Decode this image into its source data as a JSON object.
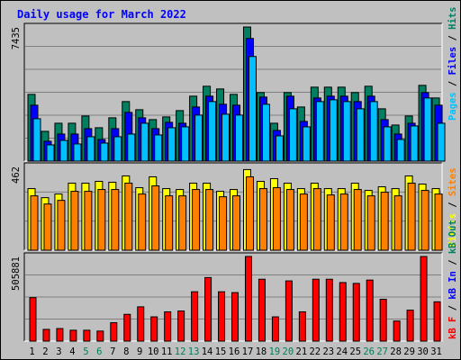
{
  "colors": {
    "background": "#c0c0c0",
    "panel": "#c0c0c0",
    "grid": "#808080",
    "title": "#0000ff",
    "hits": "#008060",
    "files": "#0000ff",
    "pages": "#00c0ff",
    "visits": "#ffff00",
    "sites": "#ff8000",
    "kbin": "#ff0000",
    "weekend": "#00805c",
    "weekday": "#000000"
  },
  "chart_data": [
    {
      "type": "bar",
      "title": "Daily usage for March 2022",
      "categories": [
        "1",
        "2",
        "3",
        "4",
        "5",
        "6",
        "7",
        "8",
        "9",
        "10",
        "11",
        "12",
        "13",
        "14",
        "15",
        "16",
        "17",
        "18",
        "19",
        "20",
        "21",
        "22",
        "23",
        "24",
        "25",
        "26",
        "27",
        "28",
        "29",
        "30",
        "31"
      ],
      "weekend_days": [
        "5",
        "6",
        "12",
        "13",
        "19",
        "20",
        "26",
        "27"
      ],
      "ymax_label": "7435",
      "ylim": [
        0,
        7435
      ],
      "series": [
        {
          "name": "Hits",
          "color_key": "hits",
          "values": [
            3700,
            1650,
            2100,
            2100,
            2500,
            1850,
            2400,
            3300,
            2850,
            2300,
            2450,
            2800,
            3600,
            4150,
            4000,
            3700,
            7435,
            3800,
            2100,
            3800,
            3000,
            4100,
            4100,
            4100,
            3800,
            4150,
            2900,
            2000,
            2500,
            4200,
            3500
          ]
        },
        {
          "name": "Files",
          "color_key": "files",
          "values": [
            3100,
            1100,
            1500,
            1500,
            1800,
            1200,
            1800,
            2700,
            2400,
            1800,
            2150,
            2100,
            3000,
            3600,
            3150,
            3100,
            6800,
            3550,
            1700,
            3600,
            2200,
            3500,
            3600,
            3600,
            3300,
            3600,
            2300,
            1500,
            2100,
            3800,
            3100
          ]
        },
        {
          "name": "Pages",
          "color_key": "pages",
          "values": [
            2350,
            900,
            1150,
            950,
            1350,
            1000,
            1350,
            1500,
            2100,
            1450,
            1850,
            1900,
            2550,
            3300,
            2600,
            2550,
            5800,
            3150,
            1400,
            2900,
            1900,
            3300,
            3400,
            3300,
            2900,
            3300,
            1900,
            1200,
            1950,
            3500,
            2100
          ]
        }
      ]
    },
    {
      "type": "bar",
      "categories": [
        "1",
        "2",
        "3",
        "4",
        "5",
        "6",
        "7",
        "8",
        "9",
        "10",
        "11",
        "12",
        "13",
        "14",
        "15",
        "16",
        "17",
        "18",
        "19",
        "20",
        "21",
        "22",
        "23",
        "24",
        "25",
        "26",
        "27",
        "28",
        "29",
        "30",
        "31"
      ],
      "ymax_label": "462",
      "ylim": [
        0,
        462
      ],
      "series": [
        {
          "name": "Visits",
          "color_key": "visits",
          "values": [
            340,
            290,
            310,
            370,
            370,
            380,
            375,
            410,
            345,
            405,
            340,
            335,
            370,
            370,
            325,
            335,
            445,
            380,
            395,
            370,
            340,
            370,
            340,
            340,
            370,
            330,
            350,
            340,
            410,
            365,
            340
          ]
        },
        {
          "name": "Sites",
          "color_key": "sites",
          "values": [
            300,
            255,
            275,
            325,
            325,
            335,
            335,
            370,
            310,
            355,
            300,
            300,
            335,
            335,
            295,
            300,
            405,
            340,
            345,
            335,
            310,
            340,
            305,
            310,
            335,
            300,
            320,
            300,
            370,
            330,
            310
          ]
        }
      ]
    },
    {
      "type": "bar",
      "categories": [
        "1",
        "2",
        "3",
        "4",
        "5",
        "6",
        "7",
        "8",
        "9",
        "10",
        "11",
        "12",
        "13",
        "14",
        "15",
        "16",
        "17",
        "18",
        "19",
        "20",
        "21",
        "22",
        "23",
        "24",
        "25",
        "26",
        "27",
        "28",
        "29",
        "30",
        "31"
      ],
      "ymax_label": "505881",
      "ylim": [
        0,
        505881
      ],
      "series": [
        {
          "name": "kB F",
          "color_key": "kbin",
          "values": [
            260000,
            70000,
            75000,
            65000,
            65000,
            60000,
            110000,
            160000,
            205000,
            145000,
            175000,
            180000,
            295000,
            380000,
            295000,
            290000,
            505881,
            370000,
            145000,
            360000,
            175000,
            370000,
            370000,
            350000,
            345000,
            365000,
            250000,
            120000,
            185000,
            505881,
            235000
          ]
        }
      ]
    }
  ],
  "right_legend": {
    "top": [
      {
        "text": "Pages",
        "color_key": "pages"
      },
      {
        "text": " / ",
        "color_key": "weekday"
      },
      {
        "text": "Files",
        "color_key": "files"
      },
      {
        "text": " / ",
        "color_key": "weekday"
      },
      {
        "text": "Hits",
        "color_key": "hits"
      }
    ],
    "middle": [
      {
        "text": "Visits",
        "color_key": "visits"
      },
      {
        "text": " / ",
        "color_key": "weekday"
      },
      {
        "text": "Sites",
        "color_key": "sites"
      }
    ],
    "bottom": [
      {
        "text": "kB F",
        "color_key": "kbin"
      },
      {
        "text": " / ",
        "color_key": "weekday"
      },
      {
        "text": "kB In",
        "color_key": "files"
      },
      {
        "text": " / ",
        "color_key": "weekday"
      },
      {
        "text": "kB Out",
        "color_key": "hits"
      }
    ]
  }
}
